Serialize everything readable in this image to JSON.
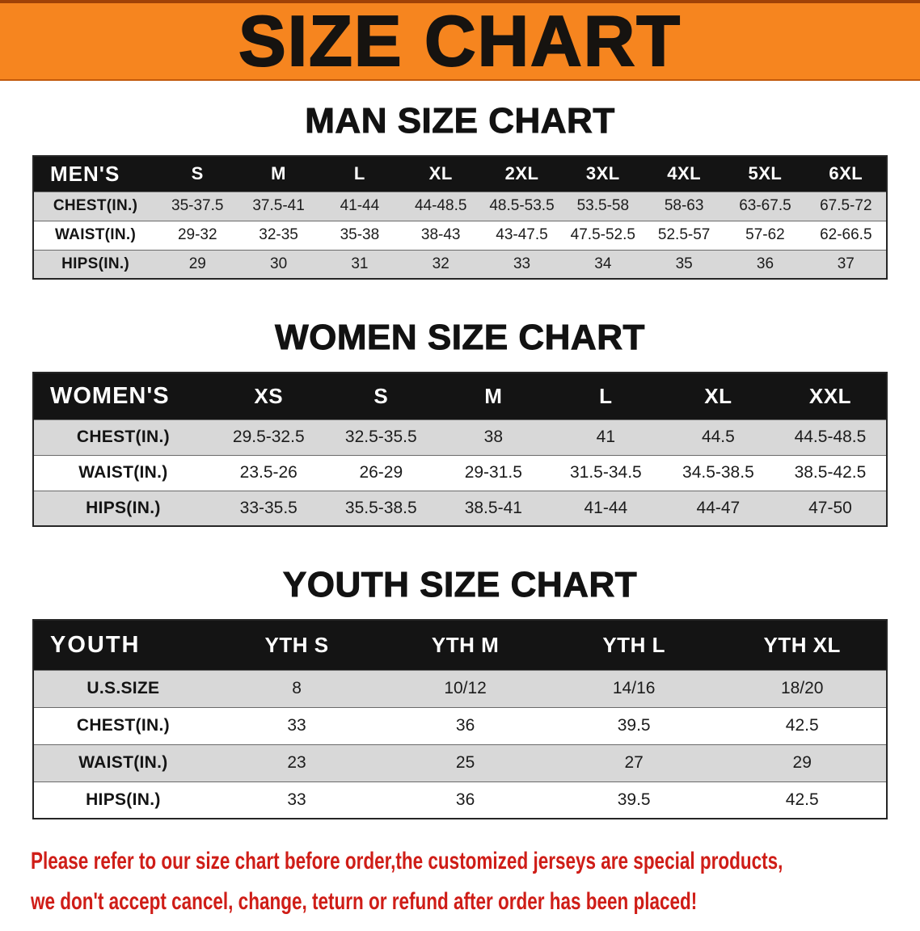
{
  "banner": {
    "title": "SIZE CHART"
  },
  "sections": [
    {
      "id": "men",
      "heading": "MAN SIZE CHART",
      "table": {
        "header_label": "MEN'S",
        "columns": [
          "S",
          "M",
          "L",
          "XL",
          "2XL",
          "3XL",
          "4XL",
          "5XL",
          "6XL"
        ],
        "rows": [
          {
            "label": "CHEST(IN.)",
            "values": [
              "35-37.5",
              "37.5-41",
              "41-44",
              "44-48.5",
              "48.5-53.5",
              "53.5-58",
              "58-63",
              "63-67.5",
              "67.5-72"
            ]
          },
          {
            "label": "WAIST(IN.)",
            "values": [
              "29-32",
              "32-35",
              "35-38",
              "38-43",
              "43-47.5",
              "47.5-52.5",
              "52.5-57",
              "57-62",
              "62-66.5"
            ]
          },
          {
            "label": "HIPS(IN.)",
            "values": [
              "29",
              "30",
              "31",
              "32",
              "33",
              "34",
              "35",
              "36",
              "37"
            ]
          }
        ]
      }
    },
    {
      "id": "women",
      "heading": "WOMEN SIZE CHART",
      "table": {
        "header_label": "WOMEN'S",
        "columns": [
          "XS",
          "S",
          "M",
          "L",
          "XL",
          "XXL"
        ],
        "rows": [
          {
            "label": "CHEST(IN.)",
            "values": [
              "29.5-32.5",
              "32.5-35.5",
              "38",
              "41",
              "44.5",
              "44.5-48.5"
            ]
          },
          {
            "label": "WAIST(IN.)",
            "values": [
              "23.5-26",
              "26-29",
              "29-31.5",
              "31.5-34.5",
              "34.5-38.5",
              "38.5-42.5"
            ]
          },
          {
            "label": "HIPS(IN.)",
            "values": [
              "33-35.5",
              "35.5-38.5",
              "38.5-41",
              "41-44",
              "44-47",
              "47-50"
            ]
          }
        ]
      }
    },
    {
      "id": "youth",
      "heading": "YOUTH SIZE CHART",
      "table": {
        "header_label": "YOUTH",
        "columns": [
          "YTH S",
          "YTH M",
          "YTH L",
          "YTH XL"
        ],
        "rows": [
          {
            "label": "U.S.SIZE",
            "values": [
              "8",
              "10/12",
              "14/16",
              "18/20"
            ]
          },
          {
            "label": "CHEST(IN.)",
            "values": [
              "33",
              "36",
              "39.5",
              "42.5"
            ]
          },
          {
            "label": "WAIST(IN.)",
            "values": [
              "23",
              "25",
              "27",
              "29"
            ]
          },
          {
            "label": "HIPS(IN.)",
            "values": [
              "33",
              "36",
              "39.5",
              "42.5"
            ]
          }
        ]
      }
    }
  ],
  "footer": {
    "line1": "Please refer to our size chart before order,the customized jerseys are special products,",
    "line2": "we don't accept cancel, change, teturn or refund after order has been placed!"
  },
  "colors": {
    "banner_orange": "#f6851f",
    "table_header_black": "#141414",
    "row_shaded_gray": "#d8d8d8",
    "notice_red": "#cf1d17"
  }
}
